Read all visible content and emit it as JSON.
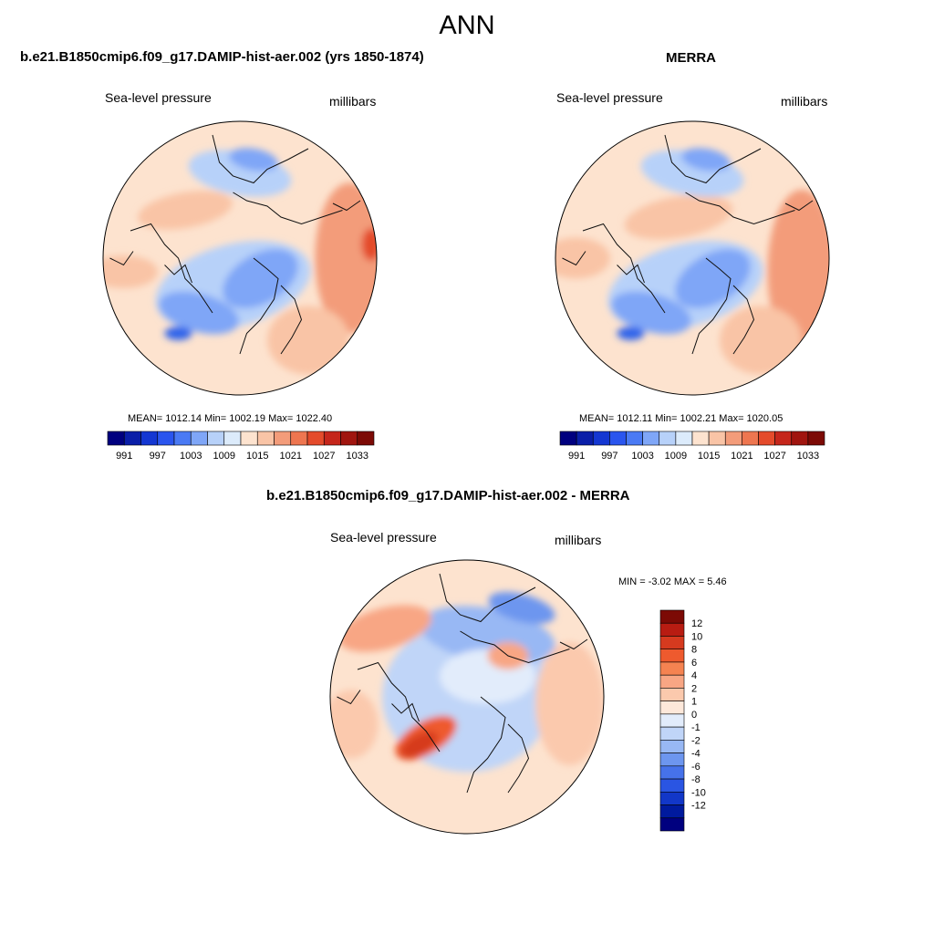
{
  "figure": {
    "title": "ANN",
    "panels": [
      {
        "title": "b.e21.B1850cmip6.f09_g17.DAMIP-hist-aer.002 (yrs 1850-1874)",
        "left_label": "Sea-level pressure",
        "right_label": "millibars",
        "stats": "MEAN= 1012.14  Min= 1002.19  Max= 1022.40"
      },
      {
        "title": "MERRA",
        "left_label": "Sea-level pressure",
        "right_label": "millibars",
        "stats": "MEAN= 1012.11  Min= 1002.21  Max= 1020.05"
      },
      {
        "title": "b.e21.B1850cmip6.f09_g17.DAMIP-hist-aer.002 - MERRA",
        "left_label": "Sea-level pressure",
        "right_label": "millibars",
        "stats": "MIN =  -3.02 MAX =   5.46"
      }
    ]
  },
  "chart_data": [
    {
      "type": "heatmap",
      "projection": "north polar stereographic",
      "title": "b.e21.B1850cmip6.f09_g17.DAMIP-hist-aer.002 (yrs 1850-1874)",
      "variable": "Sea-level pressure",
      "units": "millibars",
      "mean": 1012.14,
      "min": 1002.19,
      "max": 1022.4,
      "colorbar_orientation": "horizontal",
      "levels": [
        991,
        994,
        997,
        1000,
        1003,
        1006,
        1009,
        1012,
        1015,
        1018,
        1021,
        1024,
        1027,
        1030,
        1033
      ],
      "tick_labels": [
        "991",
        "997",
        "1003",
        "1009",
        "1015",
        "1021",
        "1027",
        "1033"
      ],
      "colors": [
        "#00007f",
        "#0a1ea8",
        "#1437d2",
        "#2a55ee",
        "#4a7af4",
        "#7fa6f7",
        "#b7d1f9",
        "#dcebfb",
        "#fde3cf",
        "#f9c4a6",
        "#f39c7a",
        "#ee7650",
        "#e44b2b",
        "#c5261b",
        "#a0150f",
        "#7c0a05"
      ]
    },
    {
      "type": "heatmap",
      "projection": "north polar stereographic",
      "title": "MERRA",
      "variable": "Sea-level pressure",
      "units": "millibars",
      "mean": 1012.11,
      "min": 1002.21,
      "max": 1020.05,
      "colorbar_orientation": "horizontal",
      "levels": [
        991,
        994,
        997,
        1000,
        1003,
        1006,
        1009,
        1012,
        1015,
        1018,
        1021,
        1024,
        1027,
        1030,
        1033
      ],
      "tick_labels": [
        "991",
        "997",
        "1003",
        "1009",
        "1015",
        "1021",
        "1027",
        "1033"
      ],
      "colors": [
        "#00007f",
        "#0a1ea8",
        "#1437d2",
        "#2a55ee",
        "#4a7af4",
        "#7fa6f7",
        "#b7d1f9",
        "#dcebfb",
        "#fde3cf",
        "#f9c4a6",
        "#f39c7a",
        "#ee7650",
        "#e44b2b",
        "#c5261b",
        "#a0150f",
        "#7c0a05"
      ]
    },
    {
      "type": "heatmap",
      "projection": "north polar stereographic",
      "title": "b.e21.B1850cmip6.f09_g17.DAMIP-hist-aer.002 - MERRA",
      "variable": "Sea-level pressure",
      "units": "millibars",
      "min": -3.02,
      "max": 5.46,
      "colorbar_orientation": "vertical",
      "levels": [
        12,
        10,
        8,
        6,
        4,
        2,
        1,
        0,
        -1,
        -2,
        -4,
        -6,
        -8,
        -10,
        -12
      ],
      "tick_labels": [
        "12",
        "10",
        "8",
        "6",
        "4",
        "2",
        "1",
        "0",
        "-1",
        "-2",
        "-4",
        "-6",
        "-8",
        "-10",
        "-12"
      ],
      "colors": [
        "#7c0a05",
        "#b81c12",
        "#d63a1f",
        "#ee5a2e",
        "#f58351",
        "#f8a684",
        "#fbc9ad",
        "#fde8da",
        "#e2ecfb",
        "#c0d5f8",
        "#98b8f4",
        "#6d96ef",
        "#4672ea",
        "#2a55e3",
        "#1237c8",
        "#001a9e",
        "#00007f"
      ]
    }
  ]
}
